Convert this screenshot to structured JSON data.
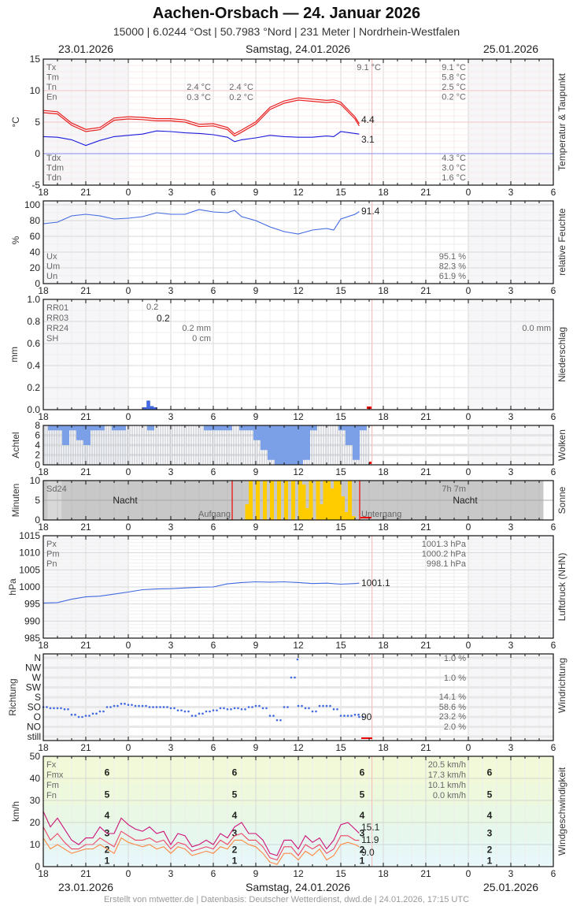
{
  "header": {
    "title": "Aachen-Orsbach  —  24. Januar 2026",
    "subtitle": "15000  |  6.0244 °Ost  |  50.7983 °Nord  |  231 Meter  |  Nordrhein-Westfalen",
    "date_left": "23.01.2026",
    "date_center": "Samstag, 24.01.2026",
    "date_right": "25.01.2026"
  },
  "footer": {
    "text": "Erstellt von mtwetter.de | Datenbasis: Deutscher Wetterdienst, dwd.de | 24.01.2026, 17:15 UTC"
  },
  "x_ticks": [
    "18",
    "21",
    "0",
    "3",
    "6",
    "9",
    "12",
    "15",
    "18",
    "21",
    "0",
    "3",
    "6"
  ],
  "colors": {
    "temp": "#e82020",
    "dew": "#1a1adc",
    "humidity": "#4169e1",
    "rain": "#4169e1",
    "cloud": "#7ba0e8",
    "sun": "#ffcc00",
    "fx": "#cc1177",
    "fm": "#ee4466",
    "fn": "#ff8844",
    "now_line": "#f4b8b8"
  },
  "chart_data": [
    {
      "type": "line",
      "title": "Temperatur & Taupunkt",
      "ylabel": "°C",
      "ylim": [
        -5,
        15
      ],
      "yticks": [
        "15",
        "10",
        "5",
        "0",
        "-5"
      ],
      "x_hours": [
        18,
        19,
        20,
        21,
        22,
        23,
        0,
        1,
        2,
        3,
        4,
        5,
        6,
        7,
        7.5,
        8,
        9,
        10,
        11,
        12,
        13,
        14,
        14.5,
        15,
        16,
        16.3
      ],
      "series": [
        {
          "name": "T",
          "values": [
            6.5,
            6.3,
            4.5,
            3.5,
            3.8,
            5.3,
            5.5,
            5.4,
            5.2,
            5.2,
            5.0,
            4.3,
            4.4,
            3.8,
            2.8,
            3.4,
            4.7,
            7.0,
            8.0,
            8.5,
            8.3,
            8.1,
            8.2,
            7.8,
            5.5,
            4.4
          ]
        },
        {
          "name": "Td",
          "values": [
            2.7,
            2.6,
            2.2,
            1.3,
            2.1,
            2.7,
            2.9,
            3.1,
            3.6,
            3.5,
            3.3,
            3.2,
            3.0,
            2.6,
            1.9,
            2.2,
            2.5,
            2.9,
            2.7,
            2.6,
            2.6,
            2.8,
            2.7,
            3.5,
            3.2,
            3.1
          ]
        }
      ],
      "last_values": {
        "T": "4.4",
        "Td": "3.1"
      },
      "stats_labels": [
        "Tx",
        "Tm",
        "Tn",
        "En"
      ],
      "stats_values_today": [
        "9.1 °C",
        "5.8 °C",
        "2.5 °C",
        "0.2 °C"
      ],
      "stats_extra": {
        "tx_mark": "9.1 °C",
        "tn_night1": "2.4 °C",
        "en_night1": "0.3 °C",
        "tn_night2": "2.4 °C",
        "en_night2": "0.2 °C"
      },
      "dew_labels": [
        "Tdx",
        "Tdm",
        "Tdn"
      ],
      "dew_values": [
        "4.3 °C",
        "3.0 °C",
        "1.6 °C"
      ]
    },
    {
      "type": "line",
      "title": "relative Feuchte",
      "ylabel": "%",
      "ylim": [
        0,
        100
      ],
      "yticks": [
        "100",
        "80",
        "60",
        "40",
        "20",
        "0"
      ],
      "x_hours": [
        18,
        19,
        20,
        21,
        22,
        23,
        0,
        1,
        2,
        3,
        4,
        5,
        6,
        7,
        7.5,
        8,
        9,
        10,
        11,
        12,
        13,
        14,
        14.5,
        15,
        16,
        16.3
      ],
      "values": [
        76,
        78,
        86,
        88,
        86,
        82,
        83,
        85,
        90,
        88,
        88,
        94,
        91,
        90,
        93,
        85,
        80,
        72,
        66,
        63,
        68,
        70,
        68,
        82,
        88,
        91.4
      ],
      "last_value": "91.4",
      "stats_labels": [
        "Ux",
        "Um",
        "Un"
      ],
      "stats_values": [
        "95.1 %",
        "82.3 %",
        "61.9 %"
      ]
    },
    {
      "type": "bar",
      "title": "Niederschlag",
      "ylabel": "mm",
      "ylim": [
        0,
        1.0
      ],
      "yticks": [
        "1.0",
        "0.8",
        "0.6",
        "0.4",
        "0.2",
        "0.0"
      ],
      "x_hours": [
        1.0,
        1.25,
        1.5,
        1.75
      ],
      "values": [
        0.02,
        0.08,
        0.03,
        0.02
      ],
      "stats_labels": [
        "RR01",
        "RR03",
        "RR24",
        "SH"
      ],
      "stats_values": {
        "rr01": "0.2",
        "rr03": "0.2",
        "rr24": "0.2 mm",
        "sh": "0 cm",
        "rr24_next": "0.0 mm"
      }
    },
    {
      "type": "bar",
      "title": "Wolken",
      "ylabel": "Achtel",
      "ylim": [
        0,
        8
      ],
      "yticks": [
        "8",
        "6",
        "4",
        "2",
        "0"
      ],
      "x_hours": [
        18.5,
        19,
        19.5,
        20,
        20.5,
        21,
        21.5,
        22,
        22.5,
        23,
        23.5,
        0,
        0.5,
        1,
        1.5,
        2,
        2.5,
        3,
        3.5,
        4,
        4.5,
        5,
        5.5,
        6,
        6.5,
        7,
        7.5,
        8,
        8.5,
        9,
        9.5,
        10,
        10.5,
        11,
        11.5,
        12,
        12.5,
        13,
        13.5,
        14,
        14.5,
        15,
        15.5,
        16,
        16.5
      ],
      "values": [
        1,
        1,
        4,
        1,
        3,
        4,
        1,
        1,
        0,
        1,
        1,
        0,
        0,
        0,
        1,
        0,
        0,
        0,
        0,
        0,
        0,
        0,
        1,
        1,
        1,
        1,
        0,
        1,
        1,
        3,
        5,
        7,
        8,
        8,
        8,
        8,
        7,
        1,
        0,
        0,
        0,
        1,
        4,
        7,
        1
      ]
    },
    {
      "type": "bar",
      "title": "Sonne",
      "ylabel": "Minuten",
      "ylim": [
        0,
        10
      ],
      "yticks": [
        "10",
        "5",
        "0"
      ],
      "sunrise_label": "Aufgang",
      "sunset_label": "Untergang",
      "night_label": "Nacht",
      "sd24_label": "Sd24",
      "sd24_value": "7h 7m",
      "x_hours": [
        8.25,
        8.5,
        9,
        9.5,
        10,
        10.5,
        11,
        11.5,
        12,
        12.25,
        12.5,
        12.75,
        13,
        13.25,
        13.5,
        13.75,
        14,
        14.25,
        14.5,
        14.75,
        15,
        15.25,
        15.5,
        15.75
      ],
      "values": [
        4,
        10,
        10,
        10,
        10,
        10,
        10,
        10,
        10,
        9,
        3,
        10,
        0,
        10,
        4,
        10,
        10,
        8,
        10,
        10,
        6,
        2,
        10,
        1
      ]
    },
    {
      "type": "line",
      "title": "Luftdruck (NHN)",
      "ylabel": "hPa",
      "ylim": [
        985,
        1015
      ],
      "yticks": [
        "1015",
        "1010",
        "1005",
        "1000",
        "995",
        "990",
        "985"
      ],
      "x_hours": [
        18,
        19,
        20,
        21,
        22,
        23,
        0,
        1,
        2,
        3,
        4,
        5,
        6,
        7,
        8,
        9,
        10,
        11,
        12,
        13,
        14,
        15,
        16,
        16.3
      ],
      "values": [
        995.3,
        995.4,
        996.4,
        997.1,
        997.3,
        997.9,
        998.5,
        999.2,
        999.4,
        999.5,
        999.7,
        999.9,
        1000.0,
        1000.9,
        1001.3,
        1001.5,
        1001.4,
        1001.5,
        1001.3,
        1001.0,
        1001.1,
        1000.8,
        1001.0,
        1001.1
      ],
      "last_value": "1001.1",
      "stats_labels": [
        "Px",
        "Pm",
        "Pn"
      ],
      "stats_values": [
        "1001.3 hPa",
        "1000.2 hPa",
        "998.1 hPa"
      ]
    },
    {
      "type": "scatter",
      "title": "Windrichtung",
      "ylabel": "Richtung",
      "yticks": [
        "N",
        "NW",
        "W",
        "SW",
        "S",
        "SO",
        "O",
        "NO",
        "still"
      ],
      "x_hours": [
        18,
        18.5,
        19,
        19.5,
        20,
        20.5,
        21,
        21.5,
        22,
        22.5,
        23,
        23.5,
        0,
        0.5,
        1,
        1.5,
        2,
        2.5,
        3,
        3.5,
        4,
        4.5,
        5,
        5.5,
        6,
        6.5,
        7,
        7.5,
        8,
        8.5,
        9,
        9.5,
        10,
        10.5,
        11,
        11.5,
        12,
        12.5,
        13,
        13.5,
        14,
        14.5,
        15,
        15.5,
        16,
        16.3
      ],
      "values_deg": [
        135,
        130,
        130,
        125,
        100,
        90,
        95,
        105,
        115,
        135,
        140,
        150,
        145,
        140,
        140,
        135,
        135,
        135,
        130,
        120,
        115,
        95,
        105,
        115,
        120,
        130,
        125,
        130,
        125,
        135,
        140,
        130,
        95,
        75,
        135,
        270,
        140,
        130,
        115,
        140,
        140,
        125,
        95,
        95,
        100,
        90
      ],
      "last_value": "90",
      "freq_values": {
        "N": "1.0 %",
        "W": "1.0 %",
        "S": "14.1 %",
        "SO": "58.6 %",
        "O": "23.2 %",
        "NO": "2.0 %"
      }
    },
    {
      "type": "line",
      "title": "Windgeschwindigkeit",
      "ylabel": "km/h",
      "ylim": [
        0,
        50
      ],
      "yticks": [
        "50",
        "40",
        "30",
        "20",
        "10",
        "0"
      ],
      "beaufort_labels": [
        "1",
        "2",
        "3",
        "4",
        "5",
        "6"
      ],
      "x_hours": [
        18,
        18.5,
        19,
        19.5,
        20,
        20.5,
        21,
        21.5,
        22,
        22.5,
        23,
        23.5,
        0,
        0.5,
        1,
        1.5,
        2,
        2.5,
        3,
        3.5,
        4,
        4.5,
        5,
        5.5,
        6,
        6.5,
        7,
        7.5,
        8,
        8.5,
        9,
        9.5,
        10,
        10.5,
        11,
        11.5,
        12,
        12.5,
        13,
        13.5,
        14,
        14.5,
        15,
        15.5,
        16,
        16.3
      ],
      "series": [
        {
          "name": "Fx",
          "values": [
            25,
            18,
            22,
            17,
            12,
            10,
            13,
            13,
            18,
            15,
            15,
            22,
            19,
            17,
            16,
            18,
            15,
            16,
            10,
            15,
            14,
            9,
            10,
            12,
            10,
            15,
            13,
            18,
            20,
            15,
            15,
            12,
            6,
            5,
            12,
            12,
            8,
            14,
            11,
            13,
            8,
            12,
            19,
            20,
            17,
            15.1
          ]
        },
        {
          "name": "Fm",
          "values": [
            18,
            12,
            15,
            11,
            8,
            8,
            10,
            10,
            13,
            11,
            9,
            16,
            14,
            12,
            12,
            13,
            11,
            12,
            8,
            11,
            10,
            7,
            8,
            9,
            8,
            12,
            10,
            14,
            15,
            12,
            12,
            9,
            4,
            3,
            9,
            9,
            5,
            10,
            8,
            10,
            6,
            8,
            14,
            14,
            12,
            11.9
          ]
        },
        {
          "name": "Fn",
          "values": [
            13,
            8,
            10,
            8,
            6,
            7,
            8,
            8,
            10,
            8,
            6,
            13,
            11,
            10,
            9,
            10,
            8,
            9,
            6,
            9,
            8,
            5,
            6,
            7,
            6,
            9,
            8,
            12,
            12,
            10,
            9,
            6,
            2,
            1,
            6,
            6,
            3,
            7,
            5,
            8,
            3,
            5,
            10,
            11,
            10,
            9.0
          ]
        }
      ],
      "last_values": {
        "Fx": "15.1",
        "Fm": "11.9",
        "Fn": "9.0"
      },
      "stats_labels": [
        "Fx",
        "Fmx",
        "Fm",
        "Fn"
      ],
      "stats_values": [
        "20.5 km/h",
        "17.3 km/h",
        "10.1 km/h",
        "0.0 km/h"
      ]
    }
  ]
}
